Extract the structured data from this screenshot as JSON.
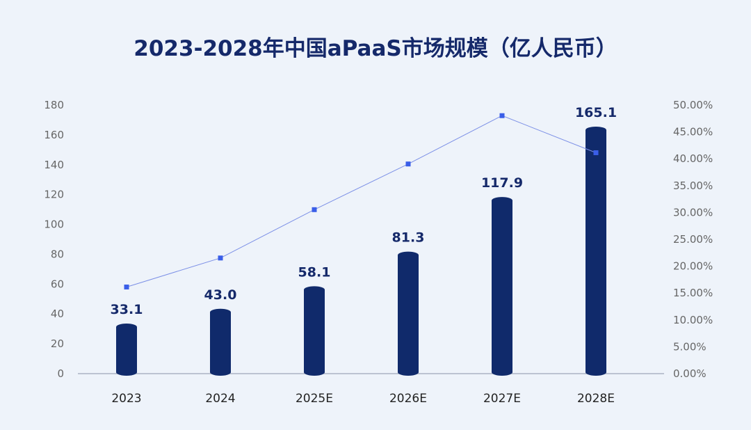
{
  "chart_data": {
    "type": "bar+line",
    "title": "2023-2028年中国aPaaS市场规模（亿人民币）",
    "categories": [
      "2023",
      "2024",
      "2025E",
      "2026E",
      "2027E",
      "2028E"
    ],
    "series": [
      {
        "axis": "left",
        "type": "bar",
        "values": [
          33.1,
          43.0,
          58.1,
          81.3,
          117.9,
          165.1
        ],
        "labels": [
          "33.1",
          "43.0",
          "58.1",
          "81.3",
          "117.9",
          "165.1"
        ]
      },
      {
        "axis": "right",
        "type": "line",
        "values": [
          16.0,
          21.4,
          30.4,
          38.9,
          47.9,
          41.0
        ]
      }
    ],
    "left_axis": {
      "range": [
        0,
        180
      ],
      "ticks": [
        "0",
        "20",
        "40",
        "60",
        "80",
        "100",
        "120",
        "140",
        "160",
        "180"
      ]
    },
    "right_axis": {
      "range": [
        0,
        50
      ],
      "unit": "%",
      "ticks": [
        "0.00%",
        "5.00%",
        "10.00%",
        "15.00%",
        "20.00%",
        "25.00%",
        "30.00%",
        "35.00%",
        "40.00%",
        "45.00%",
        "50.00%"
      ]
    },
    "grid": false,
    "legend": "none",
    "colors": {
      "bar": "#102a6b",
      "line": "#7b8fe6",
      "marker": "#3a5ee8",
      "title": "#15296a",
      "axis_text": "#666666",
      "label": "#15296a",
      "background": "#eef3fa"
    }
  }
}
